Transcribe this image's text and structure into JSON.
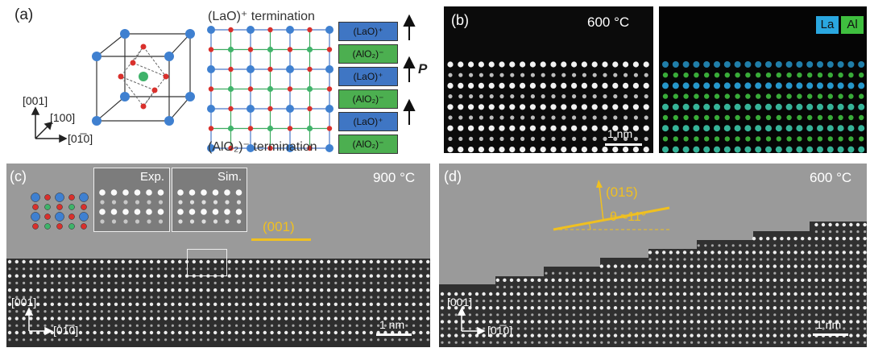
{
  "panel_a": {
    "label": "(a)",
    "top_termination": "(LaO)⁺ termination",
    "bottom_termination": "(AlO₂)⁻ termination",
    "layers": [
      {
        "text": "(LaO)⁺",
        "color": "#3f76c4"
      },
      {
        "text": "(AlO₂)⁻",
        "color": "#4caf50"
      },
      {
        "text": "(LaO)⁺",
        "color": "#3f76c4"
      },
      {
        "text": "(AlO₂)⁻",
        "color": "#4caf50"
      },
      {
        "text": "(LaO)⁺",
        "color": "#3f76c4"
      },
      {
        "text": "(AlO₂)⁻",
        "color": "#4caf50"
      }
    ],
    "polarization": "P",
    "axis_001": "[001]",
    "axis_100": "[100]",
    "axis_010": "[01̅0]"
  },
  "panel_b": {
    "label": "(b)",
    "temperature": "600 °C",
    "scale": "1 nm",
    "legend_la": "La",
    "legend_al": "Al",
    "color_la": "#2aa7e0",
    "color_al": "#3fbf3f"
  },
  "panel_c": {
    "label": "(c)",
    "temperature": "900 °C",
    "inset_exp": "Exp.",
    "inset_sim": "Sim.",
    "plane": "(001)",
    "axis_001": "[001]",
    "axis_010": "[01̅0]",
    "scale": "1 nm"
  },
  "panel_d": {
    "label": "(d)",
    "temperature": "600 °C",
    "plane": "(015)",
    "angle": "θ ≈11°",
    "axis_001": "[001]",
    "axis_010": "[01̅0]",
    "scale": "1 nm"
  },
  "accent": "#f0c020"
}
